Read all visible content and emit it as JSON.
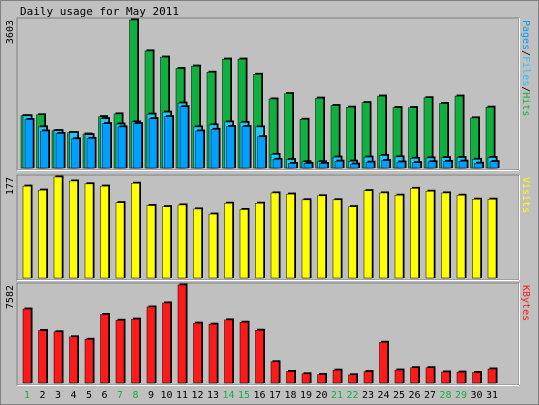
{
  "title": "Daily usage for May 2011",
  "colors": {
    "background": "#c0c0c0",
    "pages": "#00a0ff",
    "files": "#1ec8ff",
    "hits": "#10b040",
    "visits": "#ffff00",
    "kbytes": "#ff1a1a",
    "weekend_label": "#10b040",
    "weekday_label": "#000000",
    "text": "#000000"
  },
  "chart_data": [
    {
      "type": "bar",
      "panel": "hits-files-pages",
      "title": "Daily usage for May 2011",
      "max_label": "3603",
      "ylim": [
        0,
        3603
      ],
      "right_label_parts": [
        {
          "text": "Pages",
          "color": "#00a0ff"
        },
        {
          "text": "/",
          "color": "#000000"
        },
        {
          "text": "Files",
          "color": "#1ec8ff"
        },
        {
          "text": "/",
          "color": "#000000"
        },
        {
          "text": "Hits",
          "color": "#10b040"
        }
      ],
      "categories": [
        "1",
        "2",
        "3",
        "4",
        "5",
        "6",
        "7",
        "8",
        "9",
        "10",
        "11",
        "12",
        "13",
        "14",
        "15",
        "16",
        "17",
        "18",
        "19",
        "20",
        "21",
        "22",
        "23",
        "24",
        "25",
        "26",
        "27",
        "28",
        "29",
        "30",
        "31"
      ],
      "series": [
        {
          "name": "Hits",
          "color": "#10b040",
          "values": [
            1272,
            1294,
            905,
            860,
            825,
            1250,
            1316,
            3603,
            2850,
            2700,
            2420,
            2480,
            2330,
            2650,
            2650,
            2280,
            1680,
            1810,
            1185,
            1700,
            1520,
            1480,
            1590,
            1750,
            1470,
            1470,
            1710,
            1570,
            1750,
            1220,
            1480
          ]
        },
        {
          "name": "Files",
          "color": "#1ec8ff",
          "values": [
            1270,
            1000,
            910,
            860,
            810,
            1200,
            1070,
            1120,
            1310,
            1360,
            1580,
            1000,
            1050,
            1120,
            1110,
            1000,
            330,
            205,
            150,
            150,
            265,
            165,
            265,
            305,
            270,
            235,
            245,
            250,
            255,
            210,
            255
          ]
        },
        {
          "name": "Pages",
          "color": "#00a0ff",
          "values": [
            1180,
            900,
            840,
            710,
            720,
            1080,
            1000,
            1080,
            1200,
            1250,
            1490,
            900,
            940,
            1010,
            1010,
            760,
            210,
            110,
            110,
            110,
            165,
            95,
            140,
            180,
            145,
            130,
            150,
            160,
            165,
            115,
            155
          ]
        }
      ]
    },
    {
      "type": "bar",
      "panel": "visits",
      "max_label": "177",
      "ylim": [
        0,
        177
      ],
      "right_label_parts": [
        {
          "text": "Visits",
          "color": "#ffff00"
        }
      ],
      "categories": [
        "1",
        "2",
        "3",
        "4",
        "5",
        "6",
        "7",
        "8",
        "9",
        "10",
        "11",
        "12",
        "13",
        "14",
        "15",
        "16",
        "17",
        "18",
        "19",
        "20",
        "21",
        "22",
        "23",
        "24",
        "25",
        "26",
        "27",
        "28",
        "29",
        "30",
        "31"
      ],
      "series": [
        {
          "name": "Visits",
          "color": "#ffff00",
          "values": [
            161,
            154,
            177,
            170,
            165,
            161,
            132,
            166,
            127,
            125,
            128,
            121,
            112,
            131,
            120,
            131,
            149,
            147,
            137,
            144,
            137,
            125,
            153,
            149,
            145,
            157,
            152,
            149,
            145,
            138,
            138
          ]
        }
      ]
    },
    {
      "type": "bar",
      "panel": "kbytes",
      "max_label": "7582",
      "ylim": [
        0,
        7582
      ],
      "right_label_parts": [
        {
          "text": "KBytes",
          "color": "#ff1a1a"
        }
      ],
      "categories": [
        "1",
        "2",
        "3",
        "4",
        "5",
        "6",
        "7",
        "8",
        "9",
        "10",
        "11",
        "12",
        "13",
        "14",
        "15",
        "16",
        "17",
        "18",
        "19",
        "20",
        "21",
        "22",
        "23",
        "24",
        "25",
        "26",
        "27",
        "28",
        "29",
        "30",
        "31"
      ],
      "weekend_days": [
        "1",
        "7",
        "8",
        "14",
        "15",
        "21",
        "22",
        "28",
        "29"
      ],
      "series": [
        {
          "name": "KBytes",
          "color": "#ff1a1a",
          "values": [
            5720,
            4060,
            3960,
            3570,
            3380,
            5300,
            4850,
            4940,
            5880,
            6190,
            7582,
            4630,
            4550,
            4880,
            4700,
            4080,
            1640,
            890,
            710,
            650,
            990,
            630,
            880,
            3150,
            1000,
            1180,
            1180,
            850,
            840,
            810,
            1080
          ]
        }
      ]
    }
  ]
}
